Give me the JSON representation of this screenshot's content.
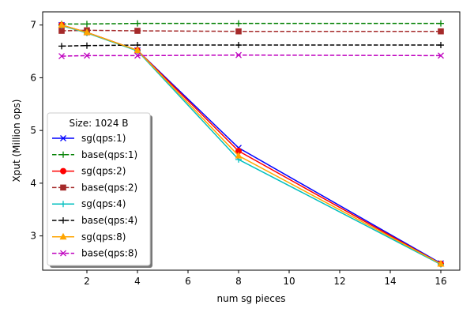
{
  "chart_data": {
    "type": "line",
    "xlabel": "num sg pieces",
    "ylabel": "Xput (Million ops)",
    "xlim": [
      0.25,
      16.75
    ],
    "ylim": [
      2.35,
      7.25
    ],
    "xticks": [
      2,
      4,
      6,
      8,
      10,
      12,
      14,
      16
    ],
    "yticks": [
      3,
      4,
      5,
      6,
      7
    ],
    "grid": false,
    "legend": {
      "title": "Size: 1024 B",
      "placement": "center-left"
    },
    "series": [
      {
        "name": "sg(qps:1)",
        "color": "#0000ff",
        "dash": "solid",
        "marker": "x",
        "x": [
          1,
          2,
          4,
          8,
          16
        ],
        "values": [
          7.0,
          6.86,
          6.52,
          4.67,
          2.48
        ]
      },
      {
        "name": "base(qps:1)",
        "color": "#008000",
        "dash": "dashed",
        "marker": "plus",
        "x": [
          1,
          2,
          4,
          8,
          16
        ],
        "values": [
          7.02,
          7.02,
          7.03,
          7.03,
          7.03
        ]
      },
      {
        "name": "sg(qps:2)",
        "color": "#ff0000",
        "dash": "solid",
        "marker": "circle",
        "x": [
          1,
          2,
          4,
          8,
          16
        ],
        "values": [
          7.0,
          6.86,
          6.52,
          4.61,
          2.47
        ]
      },
      {
        "name": "base(qps:2)",
        "color": "#a52a2a",
        "dash": "dashed",
        "marker": "square",
        "x": [
          1,
          2,
          4,
          8,
          16
        ],
        "values": [
          6.89,
          6.9,
          6.89,
          6.88,
          6.88
        ]
      },
      {
        "name": "sg(qps:4)",
        "color": "#00bfbf",
        "dash": "solid",
        "marker": "plus",
        "x": [
          1,
          2,
          4,
          8,
          16
        ],
        "values": [
          6.99,
          6.85,
          6.51,
          4.45,
          2.46
        ]
      },
      {
        "name": "base(qps:4)",
        "color": "#000000",
        "dash": "dashed",
        "marker": "plus",
        "x": [
          1,
          2,
          4,
          8,
          16
        ],
        "values": [
          6.6,
          6.61,
          6.62,
          6.62,
          6.62
        ]
      },
      {
        "name": "sg(qps:8)",
        "color": "#ffa500",
        "dash": "solid",
        "marker": "triangle",
        "x": [
          1,
          2,
          4,
          8,
          16
        ],
        "values": [
          7.0,
          6.86,
          6.52,
          4.52,
          2.47
        ]
      },
      {
        "name": "base(qps:8)",
        "color": "#bf00bf",
        "dash": "dashed",
        "marker": "x",
        "x": [
          1,
          2,
          4,
          8,
          16
        ],
        "values": [
          6.41,
          6.42,
          6.42,
          6.43,
          6.42
        ]
      }
    ]
  }
}
